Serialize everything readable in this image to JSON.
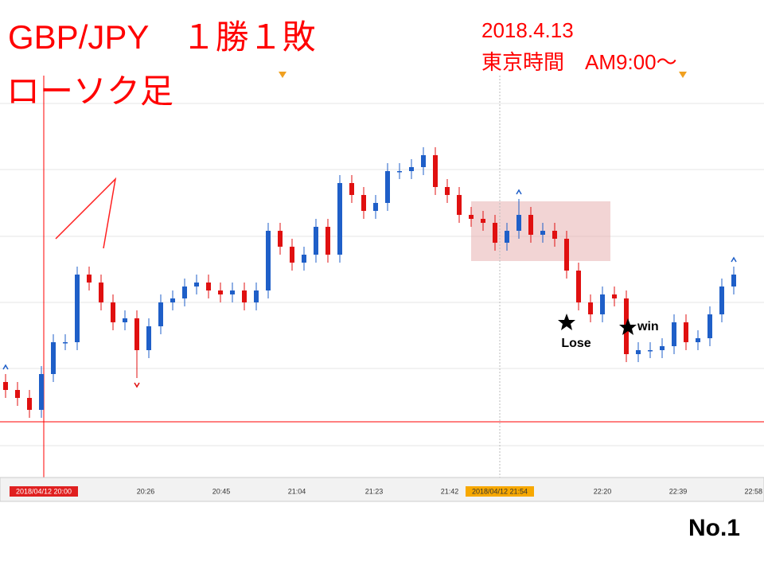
{
  "chart_data": {
    "type": "candlestick",
    "title": "GBP/JPY　１勝１敗",
    "subtitle": "ローソク足",
    "date": "2018.4.13",
    "session": "東京時間　AM9:00～",
    "lose_label": "Lose",
    "win_label": "win",
    "page_number": "No.1",
    "x_labels": [
      "2018/04/12 20:00",
      "20:26",
      "20:45",
      "21:04",
      "21:23",
      "21:42",
      "2018/04/12 21:54",
      "22:20",
      "22:39",
      "22:58"
    ],
    "ylim": [
      151.9,
      152.9
    ],
    "up_color": "#1f5fc8",
    "down_color": "#e01010",
    "open": [
      152.14,
      152.12,
      152.1,
      152.07,
      152.16,
      152.24,
      152.24,
      152.41,
      152.39,
      152.34,
      152.29,
      152.3,
      152.22,
      152.28,
      152.34,
      152.35,
      152.38,
      152.39,
      152.37,
      152.36,
      152.37,
      152.34,
      152.37,
      152.52,
      152.48,
      152.44,
      152.46,
      152.53,
      152.46,
      152.64,
      152.61,
      152.57,
      152.59,
      152.67,
      152.67,
      152.68,
      152.71,
      152.63,
      152.61,
      152.56,
      152.55,
      152.54,
      152.49,
      152.52,
      152.56,
      152.51,
      152.52,
      152.5,
      152.42,
      152.34,
      152.31,
      152.36,
      152.35,
      152.21,
      152.22,
      152.22,
      152.23,
      152.29,
      152.24,
      152.25,
      152.31,
      152.38
    ],
    "high": [
      152.16,
      152.14,
      152.12,
      152.18,
      152.26,
      152.26,
      152.43,
      152.43,
      152.41,
      152.36,
      152.32,
      152.32,
      152.3,
      152.36,
      152.37,
      152.4,
      152.41,
      152.41,
      152.39,
      152.39,
      152.39,
      152.39,
      152.54,
      152.54,
      152.5,
      152.48,
      152.55,
      152.55,
      152.66,
      152.66,
      152.63,
      152.61,
      152.69,
      152.69,
      152.7,
      152.73,
      152.73,
      152.65,
      152.63,
      152.58,
      152.57,
      152.56,
      152.54,
      152.6,
      152.58,
      152.54,
      152.54,
      152.52,
      152.44,
      152.36,
      152.38,
      152.38,
      152.37,
      152.24,
      152.24,
      152.25,
      152.31,
      152.31,
      152.27,
      152.33,
      152.4,
      152.43
    ],
    "low": [
      152.1,
      152.08,
      152.05,
      152.05,
      152.14,
      152.22,
      152.22,
      152.37,
      152.32,
      152.27,
      152.27,
      152.15,
      152.2,
      152.26,
      152.32,
      152.33,
      152.36,
      152.35,
      152.34,
      152.34,
      152.32,
      152.32,
      152.35,
      152.46,
      152.42,
      152.42,
      152.44,
      152.44,
      152.44,
      152.59,
      152.55,
      152.55,
      152.57,
      152.65,
      152.65,
      152.66,
      152.61,
      152.59,
      152.54,
      152.53,
      152.52,
      152.47,
      152.47,
      152.5,
      152.49,
      152.49,
      152.48,
      152.4,
      152.32,
      152.29,
      152.29,
      152.33,
      152.19,
      152.19,
      152.2,
      152.2,
      152.21,
      152.22,
      152.22,
      152.23,
      152.29,
      152.36
    ],
    "close": [
      152.12,
      152.1,
      152.07,
      152.16,
      152.24,
      152.24,
      152.41,
      152.39,
      152.34,
      152.29,
      152.3,
      152.22,
      152.28,
      152.34,
      152.35,
      152.38,
      152.39,
      152.37,
      152.36,
      152.37,
      152.34,
      152.37,
      152.52,
      152.48,
      152.44,
      152.46,
      152.53,
      152.46,
      152.64,
      152.61,
      152.57,
      152.59,
      152.67,
      152.67,
      152.68,
      152.71,
      152.63,
      152.61,
      152.56,
      152.55,
      152.54,
      152.49,
      152.52,
      152.56,
      152.51,
      152.52,
      152.5,
      152.42,
      152.34,
      152.31,
      152.36,
      152.35,
      152.21,
      152.22,
      152.22,
      152.23,
      152.29,
      152.24,
      152.25,
      152.31,
      152.38,
      152.41
    ]
  }
}
